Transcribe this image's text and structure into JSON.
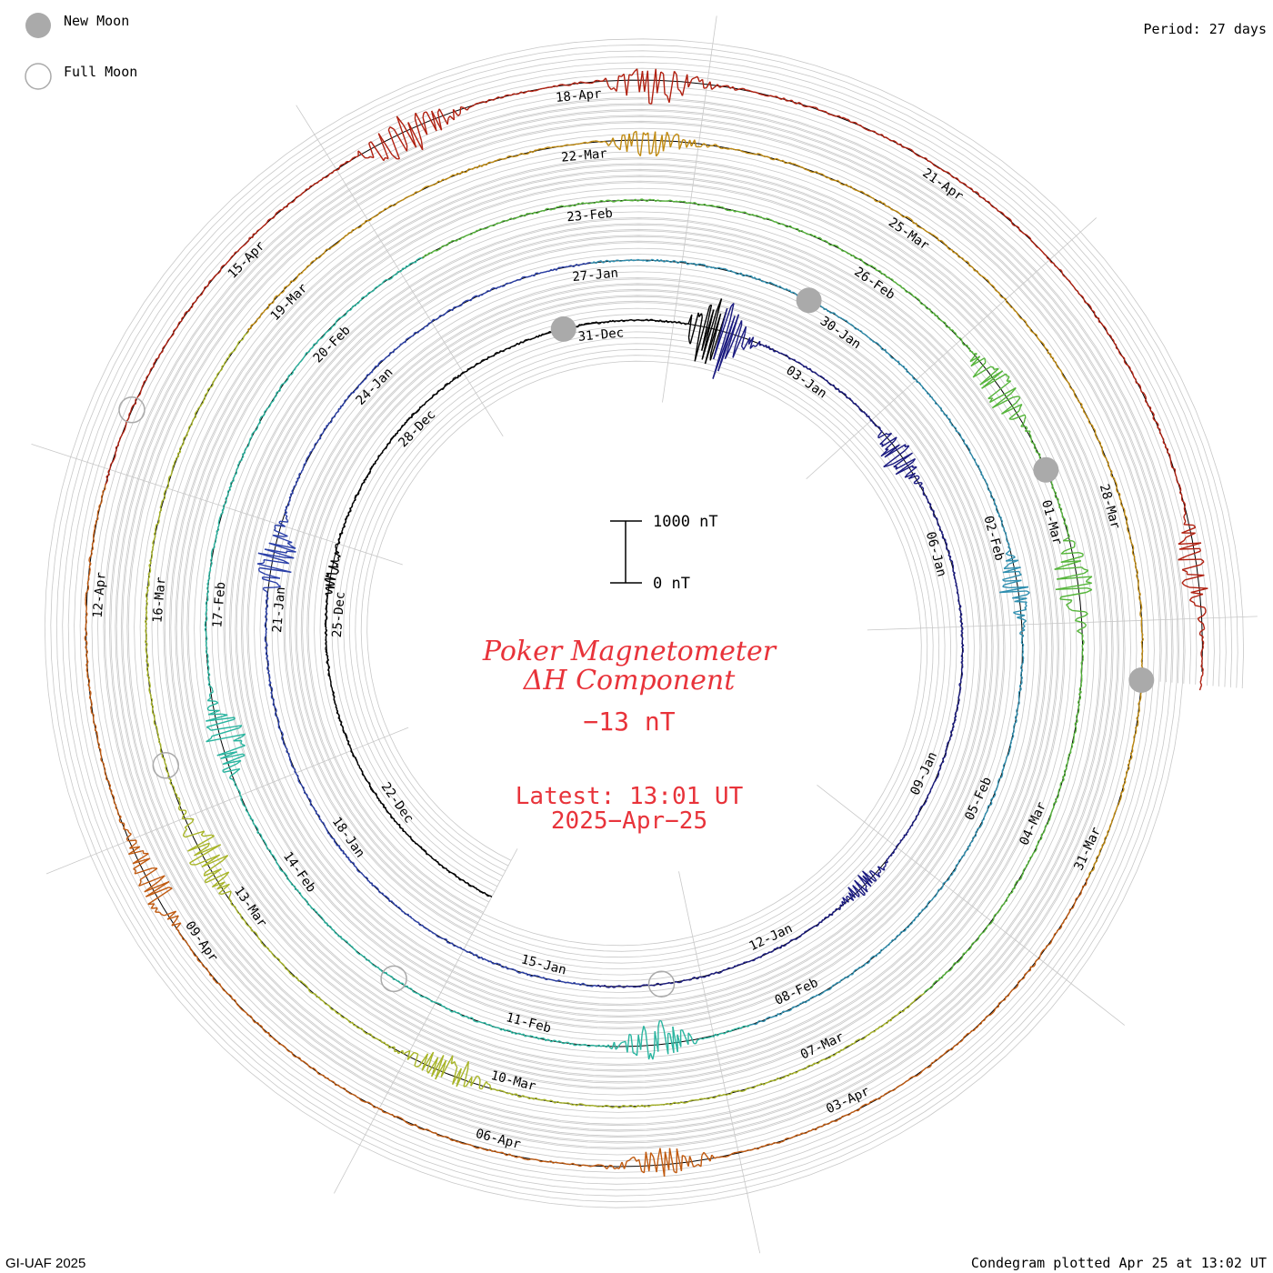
{
  "header": {
    "period_label": "Period: 27 days"
  },
  "legend": {
    "new_moon_label": "New Moon",
    "full_moon_label": "Full Moon",
    "new_moon_color": "#aaaaaa",
    "full_moon_color": "#aaaaaa"
  },
  "scale_bar": {
    "top_label": "1000 nT",
    "bottom_label": "0 nT"
  },
  "title": {
    "line1": "Poker Magnetometer",
    "line2": "ΔH Component",
    "value": "−13 nT",
    "latest": "Latest: 13:01 UT",
    "latest_date": "2025−Apr−25",
    "color": "#e8333a"
  },
  "footer": {
    "left": "GI-UAF 2025",
    "right": "Condegram plotted Apr 25 at 13:02 UT"
  },
  "chart_data": {
    "type": "line",
    "subtype": "condegram (spiral time series)",
    "period_days": 27,
    "unit": "nT",
    "scale_bar_nT": [
      0,
      1000
    ],
    "current_value_nT": -13,
    "start_date": "2024-12-20",
    "end_date": "2025-04-25",
    "series_colors": [
      "#000000",
      "#1a1a80",
      "#2a3fa8",
      "#2f8fb0",
      "#2ab5a0",
      "#55b53a",
      "#a8b528",
      "#c08a10",
      "#c05a10",
      "#b02010"
    ],
    "date_labels": [
      {
        "label": "22-Dec"
      },
      {
        "label": "25-Dec"
      },
      {
        "label": "28-Dec"
      },
      {
        "label": "31-Dec"
      },
      {
        "label": "03-Jan"
      },
      {
        "label": "06-Jan"
      },
      {
        "label": "09-Jan"
      },
      {
        "label": "12-Jan"
      },
      {
        "label": "15-Jan"
      },
      {
        "label": "18-Jan"
      },
      {
        "label": "21-Jan"
      },
      {
        "label": "24-Jan"
      },
      {
        "label": "27-Jan"
      },
      {
        "label": "30-Jan"
      },
      {
        "label": "02-Feb"
      },
      {
        "label": "05-Feb"
      },
      {
        "label": "08-Feb"
      },
      {
        "label": "11-Feb"
      },
      {
        "label": "14-Feb"
      },
      {
        "label": "17-Feb"
      },
      {
        "label": "20-Feb"
      },
      {
        "label": "23-Feb"
      },
      {
        "label": "26-Feb"
      },
      {
        "label": "01-Mar"
      },
      {
        "label": "04-Mar"
      },
      {
        "label": "07-Mar"
      },
      {
        "label": "10-Mar"
      },
      {
        "label": "13-Mar"
      },
      {
        "label": "16-Mar"
      },
      {
        "label": "19-Mar"
      },
      {
        "label": "22-Mar"
      },
      {
        "label": "25-Mar"
      },
      {
        "label": "28-Mar"
      },
      {
        "label": "31-Mar"
      },
      {
        "label": "03-Apr"
      },
      {
        "label": "06-Apr"
      },
      {
        "label": "09-Apr"
      },
      {
        "label": "12-Apr"
      },
      {
        "label": "15-Apr"
      },
      {
        "label": "18-Apr"
      },
      {
        "label": "21-Apr"
      }
    ],
    "new_moons": [
      "2024-12-30",
      "2025-01-29",
      "2025-02-28",
      "2025-03-29"
    ],
    "full_moons": [
      "2025-01-13",
      "2025-02-12",
      "2025-03-14",
      "2025-04-13"
    ],
    "disturbances": [
      {
        "date": "2024-12-25",
        "peak_nT": 150
      },
      {
        "date": "2025-01-01",
        "peak_nT": 950
      },
      {
        "date": "2025-01-04",
        "peak_nT": 350
      },
      {
        "date": "2025-01-10",
        "peak_nT": 200
      },
      {
        "date": "2025-01-21",
        "peak_nT": 450
      },
      {
        "date": "2025-02-02",
        "peak_nT": 300
      },
      {
        "date": "2025-02-09",
        "peak_nT": 400
      },
      {
        "date": "2025-02-15",
        "peak_nT": 450
      },
      {
        "date": "2025-02-27",
        "peak_nT": 400
      },
      {
        "date": "2025-03-01",
        "peak_nT": 450
      },
      {
        "date": "2025-03-10",
        "peak_nT": 350
      },
      {
        "date": "2025-03-13",
        "peak_nT": 400
      },
      {
        "date": "2025-03-22",
        "peak_nT": 300
      },
      {
        "date": "2025-04-04",
        "peak_nT": 300
      },
      {
        "date": "2025-04-09",
        "peak_nT": 350
      },
      {
        "date": "2025-04-16",
        "peak_nT": 450
      },
      {
        "date": "2025-04-18",
        "peak_nT": 400
      },
      {
        "date": "2025-04-24",
        "peak_nT": 300
      }
    ]
  }
}
